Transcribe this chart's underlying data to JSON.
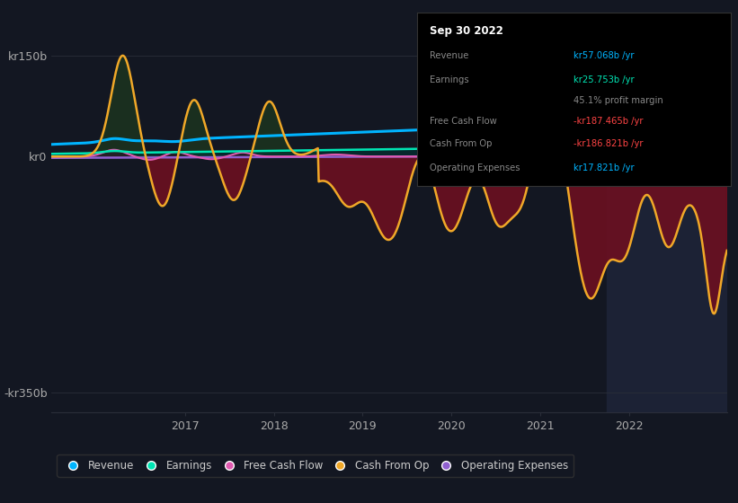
{
  "background_color": "#131722",
  "plot_bg_color": "#131722",
  "title": "Sep 30 2022",
  "ylim_low": -380,
  "ylim_high": 210,
  "revenue_color": "#00b4ff",
  "earnings_color": "#00e5b4",
  "freecashflow_color": "#e05ab0",
  "cashfromop_color": "#f0a828",
  "opex_color": "#9060d0",
  "grid_color": "#2a2e39",
  "zero_line_color": "#ffffff",
  "dark_overlay_color": "#1a2035",
  "neg_fill_color": "#6b1020",
  "legend_items": [
    {
      "label": "Revenue",
      "color": "#00b4ff"
    },
    {
      "label": "Earnings",
      "color": "#00e5b4"
    },
    {
      "label": "Free Cash Flow",
      "color": "#e05ab0"
    },
    {
      "label": "Cash From Op",
      "color": "#f0a828"
    },
    {
      "label": "Operating Expenses",
      "color": "#9060d0"
    }
  ],
  "info_rows": [
    {
      "label": "Revenue",
      "value": "kr57.068b /yr",
      "value_color": "#00b4ff"
    },
    {
      "label": "Earnings",
      "value": "kr25.753b /yr",
      "value_color": "#00e5b4"
    },
    {
      "label": "",
      "value": "45.1% profit margin",
      "value_color": "#888888"
    },
    {
      "label": "Free Cash Flow",
      "value": "-kr187.465b /yr",
      "value_color": "#ff4444"
    },
    {
      "label": "Cash From Op",
      "value": "-kr186.821b /yr",
      "value_color": "#ff4444"
    },
    {
      "label": "Operating Expenses",
      "value": "kr17.821b /yr",
      "value_color": "#00b4ff"
    }
  ]
}
